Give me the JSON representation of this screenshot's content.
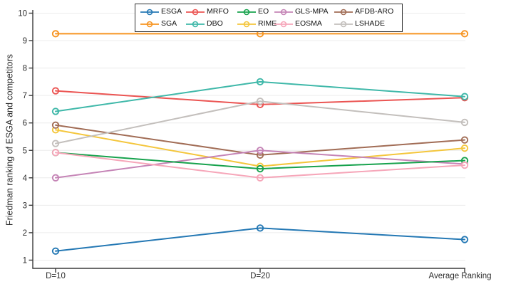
{
  "figure": {
    "background_color": "#ffffff",
    "axis_color": "#3a3a3a",
    "gridline_color": "#ececec",
    "tick_label_color": "#2e2e2e"
  },
  "chart_data": {
    "type": "line",
    "title": "",
    "xlabel": "",
    "ylabel": "Friedman ranking of ESGA and competitors",
    "categories": [
      "D=10",
      "D=20",
      "Average Ranking"
    ],
    "ylim": [
      1,
      10
    ],
    "yticks": [
      1,
      2,
      3,
      4,
      5,
      6,
      7,
      8,
      9,
      10
    ],
    "grid": "horizontal",
    "legend_position": "top-center",
    "marker": "open-circle",
    "series": [
      {
        "name": "ESGA",
        "color": "#2478b4",
        "values": [
          1.33,
          2.17,
          1.75
        ]
      },
      {
        "name": "SGA",
        "color": "#f79421",
        "values": [
          9.25,
          9.25,
          9.25
        ]
      },
      {
        "name": "MRFO",
        "color": "#eb5452",
        "values": [
          7.17,
          6.67,
          6.92
        ]
      },
      {
        "name": "DBO",
        "color": "#3fb8a9",
        "values": [
          6.42,
          7.5,
          6.96
        ]
      },
      {
        "name": "RIME",
        "color": "#f4c63c",
        "values": [
          5.75,
          4.42,
          5.08
        ]
      },
      {
        "name": "AFDB-ARO",
        "color": "#a16c55",
        "values": [
          5.92,
          4.83,
          5.38
        ]
      },
      {
        "name": "GLS-MPA",
        "color": "#c584b6",
        "values": [
          4.0,
          5.0,
          4.5
        ]
      },
      {
        "name": "EO",
        "color": "#17a24d",
        "values": [
          4.92,
          4.33,
          4.63
        ]
      },
      {
        "name": "EOSMA",
        "color": "#f6a6b9",
        "values": [
          4.92,
          4.0,
          4.46
        ]
      },
      {
        "name": "LSHADE",
        "color": "#c3bfbc",
        "values": [
          5.25,
          6.79,
          6.02
        ]
      }
    ],
    "legend_rows": [
      [
        "ESGA",
        "MRFO",
        "EO",
        "GLS-MPA",
        "AFDB-ARO"
      ],
      [
        "SGA",
        "DBO",
        "RIME",
        "EOSMA",
        "LSHADE"
      ]
    ]
  }
}
